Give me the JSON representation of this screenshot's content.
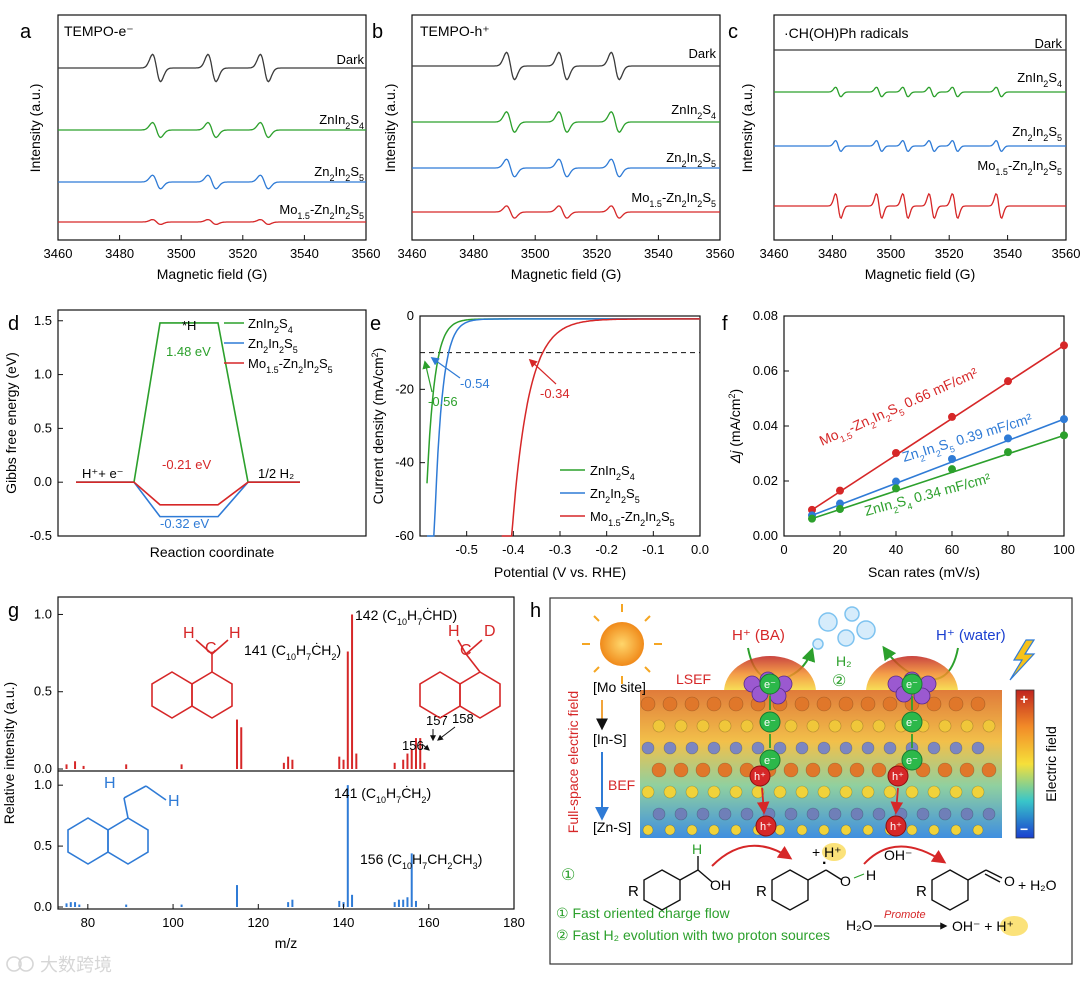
{
  "colors": {
    "dark": "#3a3a3a",
    "green": "#2ca02c",
    "blue": "#2f7bd6",
    "red": "#d62728",
    "orange": "#f5a623"
  },
  "watermark": "大数跨境",
  "chart_data": [
    {
      "id": "a",
      "type": "line",
      "panel_label": "a",
      "title": "TEMPO-e⁻",
      "xlabel": "Magnetic field (G)",
      "ylabel": "Intensity (a.u.)",
      "xlim": [
        3460,
        3560
      ],
      "xticks": [
        "3460",
        "3480",
        "3500",
        "3520",
        "3540",
        "3560"
      ],
      "series": [
        {
          "name": "Dark",
          "label_html": "Dark",
          "color": "#3a3a3a",
          "amplitude": 1.0
        },
        {
          "name": "ZnIn2S4",
          "label_html": "ZnIn<tspan baseline-shift='sub' font-size='9'>2</tspan>S<tspan baseline-shift='sub' font-size='9'>4</tspan>",
          "color": "#2ca02c",
          "amplitude": 0.55
        },
        {
          "name": "Zn2In2S5",
          "label_html": "Zn<tspan baseline-shift='sub' font-size='9'>2</tspan>In<tspan baseline-shift='sub' font-size='9'>2</tspan>S<tspan baseline-shift='sub' font-size='9'>5</tspan>",
          "color": "#2f7bd6",
          "amplitude": 0.5
        },
        {
          "name": "Mo1.5-Zn2In2S5",
          "label_html": "Mo<tspan baseline-shift='sub' font-size='9'>1.5</tspan>-Zn<tspan baseline-shift='sub' font-size='9'>2</tspan>In<tspan baseline-shift='sub' font-size='9'>2</tspan>S<tspan baseline-shift='sub' font-size='9'>5</tspan>",
          "color": "#d62728",
          "amplitude": 0.18
        }
      ],
      "peaks": [
        3492,
        3510,
        3527
      ]
    },
    {
      "id": "b",
      "type": "line",
      "panel_label": "b",
      "title": "TEMPO-h⁺",
      "xlabel": "Magnetic field (G)",
      "ylabel": "Intensity (a.u.)",
      "xlim": [
        3460,
        3560
      ],
      "xticks": [
        "3460",
        "3480",
        "3500",
        "3520",
        "3540",
        "3560"
      ],
      "series": [
        {
          "name": "Dark",
          "color": "#3a3a3a",
          "amplitude": 1.0
        },
        {
          "name": "ZnIn2S4",
          "color": "#2ca02c",
          "amplitude": 0.75
        },
        {
          "name": "Zn2In2S5",
          "color": "#2f7bd6",
          "amplitude": 0.65
        },
        {
          "name": "Mo1.5-Zn2In2S5",
          "color": "#d62728",
          "amplitude": 0.45
        }
      ],
      "peaks": [
        3492,
        3509,
        3526
      ]
    },
    {
      "id": "c",
      "type": "line",
      "panel_label": "c",
      "title": "·CH(OH)Ph radicals",
      "xlabel": "Magnetic field (G)",
      "ylabel": "Intensity (a.u.)",
      "xlim": [
        3460,
        3560
      ],
      "xticks": [
        "3460",
        "3480",
        "3500",
        "3520",
        "3540",
        "3560"
      ],
      "series": [
        {
          "name": "Dark",
          "color": "#3a3a3a",
          "amplitude": 0.0
        },
        {
          "name": "ZnIn2S4",
          "color": "#2ca02c",
          "amplitude": 0.35
        },
        {
          "name": "Zn2In2S5",
          "color": "#2f7bd6",
          "amplitude": 0.4
        },
        {
          "name": "Mo1.5-Zn2In2S5",
          "color": "#d62728",
          "amplitude": 0.9
        }
      ],
      "peaks": [
        3482,
        3496,
        3505,
        3514,
        3522,
        3537
      ]
    },
    {
      "id": "d",
      "type": "line",
      "panel_label": "d",
      "xlabel": "Reaction coordinate",
      "ylabel": "Gibbs free energy (eV)",
      "ylim": [
        -0.5,
        1.6
      ],
      "yticks": [
        "-0.5",
        "0.0",
        "0.5",
        "1.0",
        "1.5"
      ],
      "states": [
        "H⁺+ e⁻",
        "*H",
        "1/2 H₂"
      ],
      "series": [
        {
          "name": "ZnIn2S4",
          "color": "#2ca02c",
          "values": [
            0,
            1.48,
            0
          ],
          "label": "1.48 eV"
        },
        {
          "name": "Zn2In2S5",
          "color": "#2f7bd6",
          "values": [
            0,
            -0.32,
            0
          ],
          "label": "-0.32 eV"
        },
        {
          "name": "Mo1.5-Zn2In2S5",
          "color": "#d62728",
          "values": [
            0,
            -0.21,
            0
          ],
          "label": "-0.21 eV"
        }
      ],
      "text_state_left": "H⁺+ e⁻",
      "text_state_mid": "*H",
      "text_state_right": "1/2 H₂"
    },
    {
      "id": "e",
      "type": "line",
      "panel_label": "e",
      "xlabel": "Potential (V vs. RHE)",
      "ylabel": "Current density (mA/cm²)",
      "xlim": [
        -0.6,
        0.0
      ],
      "ylim": [
        -60,
        0
      ],
      "xticks": [
        "-0.5",
        "-0.4",
        "-0.3",
        "-0.2",
        "-0.1",
        "0.0"
      ],
      "yticks": [
        "0",
        "-20",
        "-40",
        "-60"
      ],
      "reference_line": -10,
      "series": [
        {
          "name": "ZnIn2S4",
          "color": "#2ca02c",
          "onset": -0.56,
          "label": "-0.56"
        },
        {
          "name": "Zn2In2S5",
          "color": "#2f7bd6",
          "onset": -0.54,
          "label": "-0.54"
        },
        {
          "name": "Mo1.5-Zn2In2S5",
          "color": "#d62728",
          "onset": -0.34,
          "label": "-0.34"
        }
      ]
    },
    {
      "id": "f",
      "type": "scatter",
      "panel_label": "f",
      "xlabel": "Scan rates  (mV/s)",
      "ylabel": "Δj (mA/cm²)",
      "xlim": [
        0,
        100
      ],
      "ylim": [
        0,
        0.08
      ],
      "xticks": [
        "0",
        "20",
        "40",
        "60",
        "80",
        "100"
      ],
      "yticks": [
        "0.00",
        "0.02",
        "0.04",
        "0.06",
        "0.08"
      ],
      "x": [
        10,
        20,
        40,
        60,
        80,
        100
      ],
      "series": [
        {
          "name": "Mo1.5-Zn2In2S5",
          "color": "#d62728",
          "values": [
            0.0095,
            0.0165,
            0.0302,
            0.0433,
            0.0563,
            0.0693
          ],
          "label": "0.66 mF/cm²"
        },
        {
          "name": "Zn2In2S5",
          "color": "#2f7bd6",
          "values": [
            0.0075,
            0.0118,
            0.0198,
            0.028,
            0.0355,
            0.0425
          ],
          "label": "0.39 mF/cm²"
        },
        {
          "name": "ZnIn2S4",
          "color": "#2ca02c",
          "values": [
            0.0063,
            0.0098,
            0.0173,
            0.0243,
            0.0305,
            0.0366
          ],
          "label": "0.34 mF/cm²"
        }
      ]
    },
    {
      "id": "g",
      "type": "bar",
      "panel_label": "g",
      "xlabel": "m/z",
      "ylabel": "Relative intensity (a.u.)",
      "xlim": [
        73,
        180
      ],
      "ylim": [
        0,
        1.1
      ],
      "xticks": [
        "80",
        "100",
        "120",
        "140",
        "160",
        "180"
      ],
      "yticks": [
        "0.0",
        "0.5",
        "1.0"
      ],
      "series": [
        {
          "name": "deuterated",
          "color": "#d62728",
          "peaks": [
            [
              75,
              0.03
            ],
            [
              77,
              0.05
            ],
            [
              79,
              0.02
            ],
            [
              89,
              0.03
            ],
            [
              102,
              0.03
            ],
            [
              115,
              0.32
            ],
            [
              116,
              0.27
            ],
            [
              126,
              0.04
            ],
            [
              127,
              0.08
            ],
            [
              128,
              0.06
            ],
            [
              139,
              0.08
            ],
            [
              140,
              0.06
            ],
            [
              141,
              0.76
            ],
            [
              142,
              1.0
            ],
            [
              143,
              0.1
            ],
            [
              152,
              0.04
            ],
            [
              154,
              0.06
            ],
            [
              155,
              0.1
            ],
            [
              156,
              0.13
            ],
            [
              157,
              0.2
            ],
            [
              158,
              0.2
            ],
            [
              159,
              0.04
            ]
          ],
          "annotations": [
            [
              "142 (C₁₀H₇ĊHD)",
              142
            ],
            [
              "141 (C₁₀H₇ĊH₂)",
              141
            ],
            [
              "156",
              156
            ],
            [
              "157",
              157
            ],
            [
              "158",
              158
            ]
          ]
        },
        {
          "name": "protonated",
          "color": "#2f7bd6",
          "peaks": [
            [
              75,
              0.03
            ],
            [
              76,
              0.04
            ],
            [
              77,
              0.04
            ],
            [
              78,
              0.02
            ],
            [
              89,
              0.02
            ],
            [
              102,
              0.02
            ],
            [
              115,
              0.18
            ],
            [
              127,
              0.04
            ],
            [
              128,
              0.06
            ],
            [
              139,
              0.05
            ],
            [
              140,
              0.04
            ],
            [
              141,
              1.0
            ],
            [
              142,
              0.1
            ],
            [
              152,
              0.04
            ],
            [
              153,
              0.06
            ],
            [
              154,
              0.06
            ],
            [
              155,
              0.08
            ],
            [
              156,
              0.44
            ],
            [
              157,
              0.05
            ]
          ],
          "annotations": [
            [
              "141 (C₁₀H₇ĊH₂)",
              141
            ],
            [
              "156 (C₁₀H₇CH₂CH₃)",
              156
            ]
          ]
        }
      ]
    }
  ],
  "panel_h": {
    "label": "h",
    "h_ba": "H⁺ (BA)",
    "h_water": "H⁺ (water)",
    "h2": "H₂",
    "step2": "②",
    "mo_site": "[Mo site]",
    "in_s": "[In-S]",
    "zn_s": "[Zn-S]",
    "lsef": "LSEF",
    "bef": "BEF",
    "full_space": "Full-space electric field",
    "step1": "①",
    "colorbar_label": "Electric field",
    "colorbar_plus": "+",
    "colorbar_minus": "−",
    "electron": "e⁻",
    "hole": "h⁺",
    "oh_minus": "OH⁻",
    "plus_h": "+ H⁺",
    "plus_h2o": "+ H₂O",
    "water_eq_left": "H₂O",
    "promote": "Promote",
    "water_eq_right": "OH⁻ + H⁺",
    "note1": "① Fast oriented charge flow",
    "note2": "② Fast H₂ evolution with two proton sources"
  }
}
